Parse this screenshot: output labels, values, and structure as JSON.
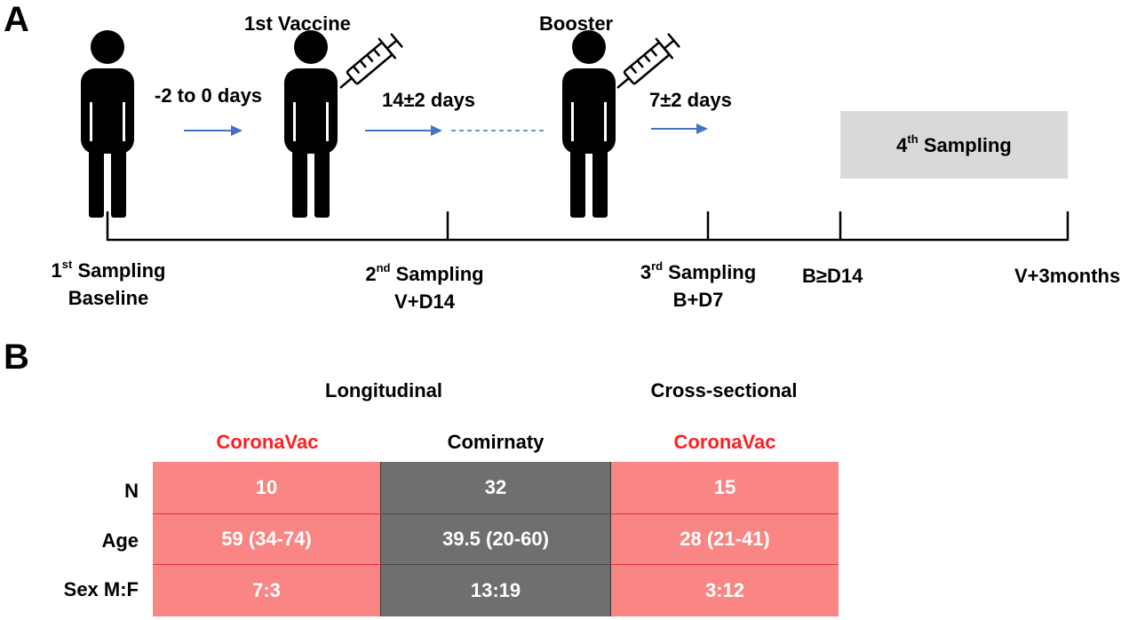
{
  "panel_a": {
    "letter": "A",
    "vaccine_label": "1st Vaccine",
    "booster_label": "Booster",
    "interval_1": "-2 to 0 days",
    "interval_2": "14±2 days",
    "interval_3": "7±2 days",
    "fourth_sampling": {
      "prefix": "4",
      "sup": "th",
      "suffix": " Sampling"
    },
    "timepoints": [
      {
        "line1_prefix": "1",
        "line1_sup": "st",
        "line1_suffix": " Sampling",
        "line2": "Baseline"
      },
      {
        "line1_prefix": "2",
        "line1_sup": "nd",
        "line1_suffix": " Sampling",
        "line2": "V+D14"
      },
      {
        "line1_prefix": "3",
        "line1_sup": "rd",
        "line1_suffix": " Sampling",
        "line2": "B+D7"
      },
      {
        "line1": "B≥D14"
      },
      {
        "line1": "V+3months"
      }
    ],
    "arrow_color": "#4472c4",
    "box_color": "#d9d9d9"
  },
  "panel_b": {
    "letter": "B",
    "group_longitudinal": "Longitudinal",
    "group_cross": "Cross-sectional",
    "columns": [
      "CoronaVac",
      "Comirnaty",
      "CoronaVac"
    ],
    "row_labels": [
      "N",
      "Age",
      "Sex M:F"
    ],
    "rows": [
      [
        "10",
        "32",
        "15"
      ],
      [
        "59 (34-74)",
        "39.5 (20-60)",
        "28 (21-41)"
      ],
      [
        "7:3",
        "13:19",
        "3:12"
      ]
    ],
    "colors": {
      "coronavac": "#ff1f1f",
      "pink_cell": "#f98585",
      "gray_cell": "#6f6f6f"
    }
  }
}
